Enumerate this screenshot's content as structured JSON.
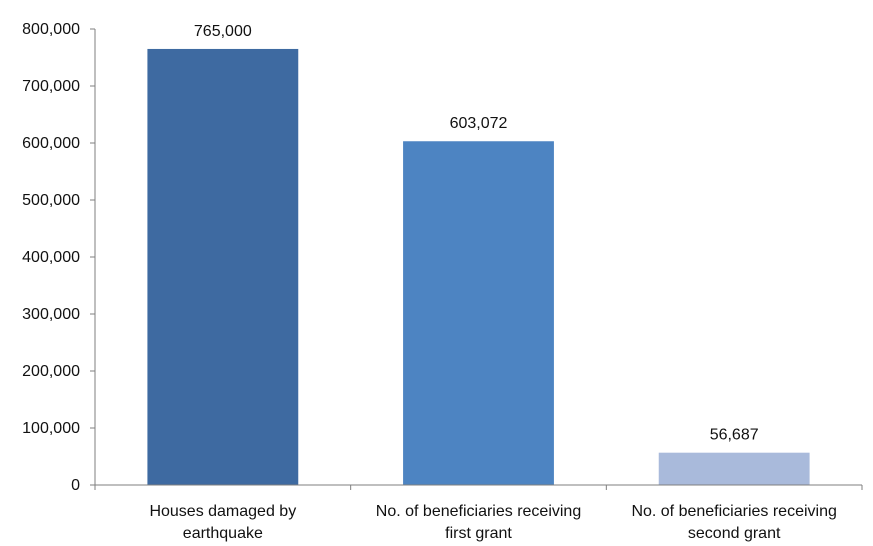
{
  "chart_data": {
    "type": "bar",
    "categories": [
      [
        "Houses damaged by",
        "earthquake"
      ],
      [
        "No. of beneficiaries receiving",
        "first grant"
      ],
      [
        "No. of beneficiaries receiving",
        "second grant"
      ]
    ],
    "values": [
      765000,
      603072,
      56687
    ],
    "data_labels": [
      "765,000",
      "603,072",
      "56,687"
    ],
    "bar_colors": [
      "#3e6aa1",
      "#4d84c2",
      "#a9badb"
    ],
    "ylim": [
      0,
      800000
    ],
    "yticks": [
      0,
      100000,
      200000,
      300000,
      400000,
      500000,
      600000,
      700000,
      800000
    ],
    "ytick_labels": [
      "0",
      "100,000",
      "200,000",
      "300,000",
      "400,000",
      "500,000",
      "600,000",
      "700,000",
      "800,000"
    ],
    "title": "",
    "xlabel": "",
    "ylabel": "",
    "grid": false,
    "legend": "none"
  }
}
